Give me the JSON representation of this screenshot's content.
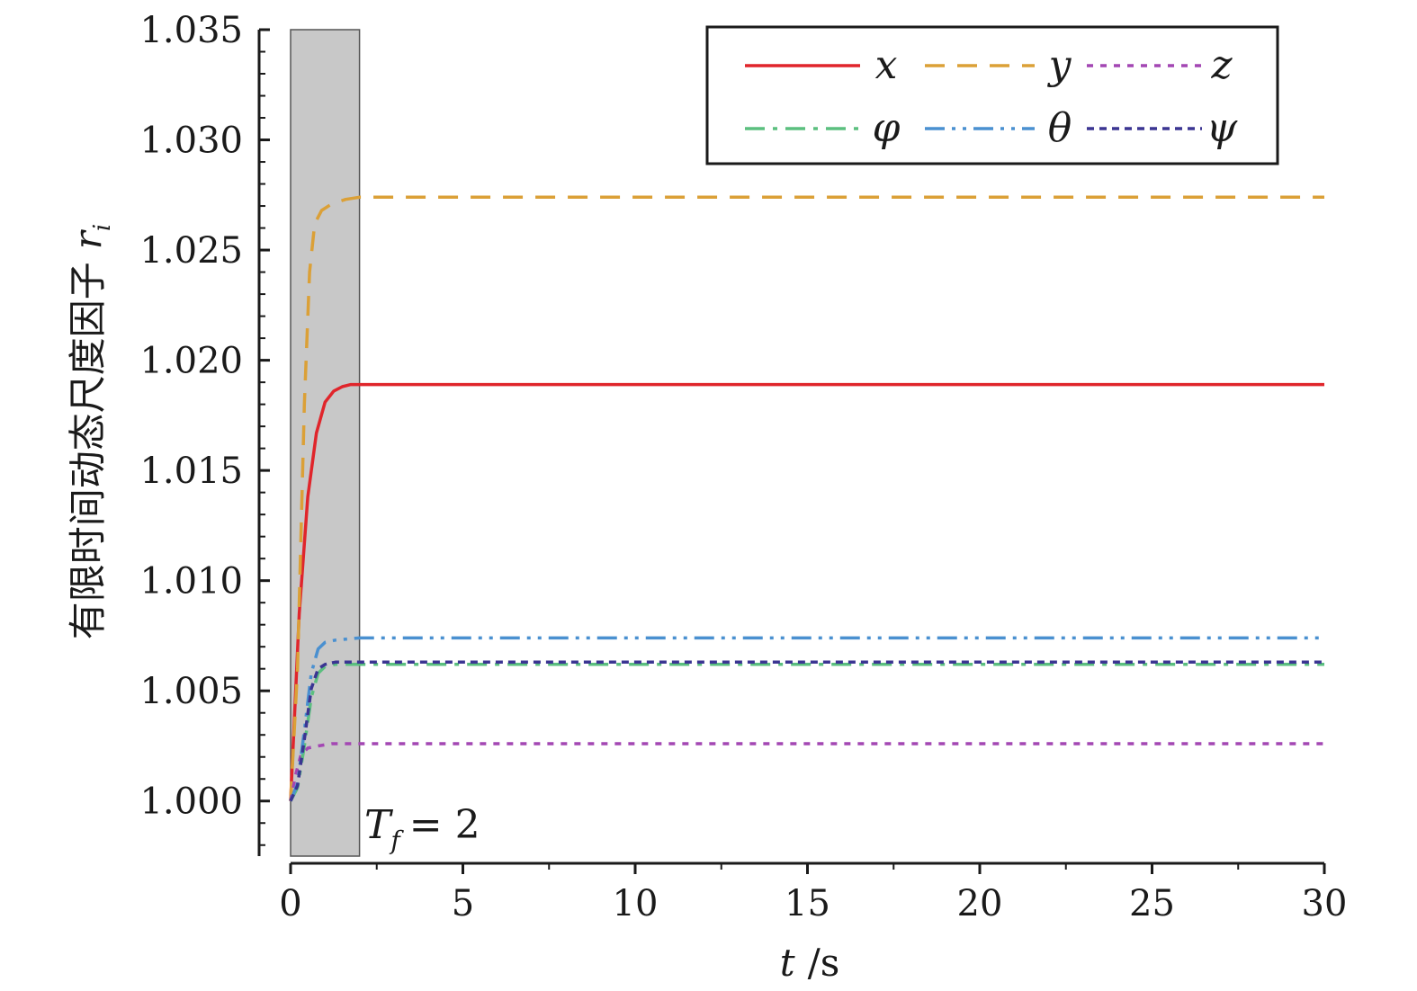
{
  "chart_data": {
    "type": "line",
    "xlabel_var": "t",
    "xlabel_unit": "/s",
    "ylabel_text": "有限时间动态尺度因子",
    "ylabel_var": "r",
    "ylabel_sub": "i",
    "xlim": [
      0,
      30
    ],
    "ylim": [
      0.9975,
      1.035
    ],
    "x_ticks": [
      0,
      5,
      10,
      15,
      20,
      25,
      30
    ],
    "x_tick_labels": [
      "0",
      "5",
      "10",
      "15",
      "20",
      "25",
      "30"
    ],
    "y_ticks": [
      1.0,
      1.005,
      1.01,
      1.015,
      1.02,
      1.025,
      1.03,
      1.035
    ],
    "y_tick_labels": [
      "1.000",
      "1.005",
      "1.010",
      "1.015",
      "1.020",
      "1.025",
      "1.030",
      "1.035"
    ],
    "shaded_region": {
      "x_start": 0,
      "x_end": 2,
      "color": "#c8c8c8"
    },
    "annotation": {
      "main": "T",
      "sub": "f",
      "rest": "= 2"
    },
    "legend_position": "top-right",
    "series": [
      {
        "name": "x",
        "color": "#e0252b",
        "dash": "solid",
        "x": [
          0,
          0.25,
          0.5,
          0.75,
          1.0,
          1.25,
          1.5,
          1.75,
          2.0,
          30
        ],
        "y": [
          1.0,
          1.0085,
          1.0138,
          1.0167,
          1.0181,
          1.0186,
          1.0188,
          1.0189,
          1.0189,
          1.0189
        ]
      },
      {
        "name": "y",
        "color": "#dba037",
        "dash": "dashed",
        "x": [
          0,
          0.2,
          0.4,
          0.55,
          0.7,
          0.9,
          1.2,
          1.6,
          2.0,
          30
        ],
        "y": [
          1.0,
          1.006,
          1.018,
          1.024,
          1.0262,
          1.0268,
          1.0271,
          1.0273,
          1.0274,
          1.0274
        ]
      },
      {
        "name": "z",
        "color": "#a347b3",
        "dash": "dotted",
        "x": [
          0,
          0.15,
          0.3,
          0.5,
          0.8,
          1.2,
          2.0,
          30
        ],
        "y": [
          1.0,
          1.0012,
          1.0021,
          1.0024,
          1.0025,
          1.0026,
          1.0026,
          1.0026
        ]
      },
      {
        "name": "φ",
        "color": "#5bbf7f",
        "dash": "dashdot",
        "x": [
          0,
          0.2,
          0.4,
          0.6,
          0.8,
          1.0,
          1.3,
          2.0,
          30
        ],
        "y": [
          1.0,
          1.0006,
          1.0025,
          1.0047,
          1.0058,
          1.0061,
          1.0062,
          1.0062,
          1.0062
        ]
      },
      {
        "name": "θ",
        "color": "#4a90d0",
        "dash": "dashdotdot",
        "x": [
          0,
          0.2,
          0.4,
          0.6,
          0.8,
          1.0,
          1.3,
          2.0,
          30
        ],
        "y": [
          1.0,
          1.0008,
          1.0032,
          1.0058,
          1.0069,
          1.0072,
          1.0073,
          1.0074,
          1.0074
        ]
      },
      {
        "name": "ψ",
        "color": "#3b3592",
        "dash": "shortdash",
        "x": [
          0,
          0.2,
          0.4,
          0.6,
          0.8,
          1.0,
          1.3,
          2.0,
          30
        ],
        "y": [
          1.0,
          1.0007,
          1.0028,
          1.0051,
          1.006,
          1.0062,
          1.0063,
          1.0063,
          1.0063
        ]
      }
    ]
  }
}
